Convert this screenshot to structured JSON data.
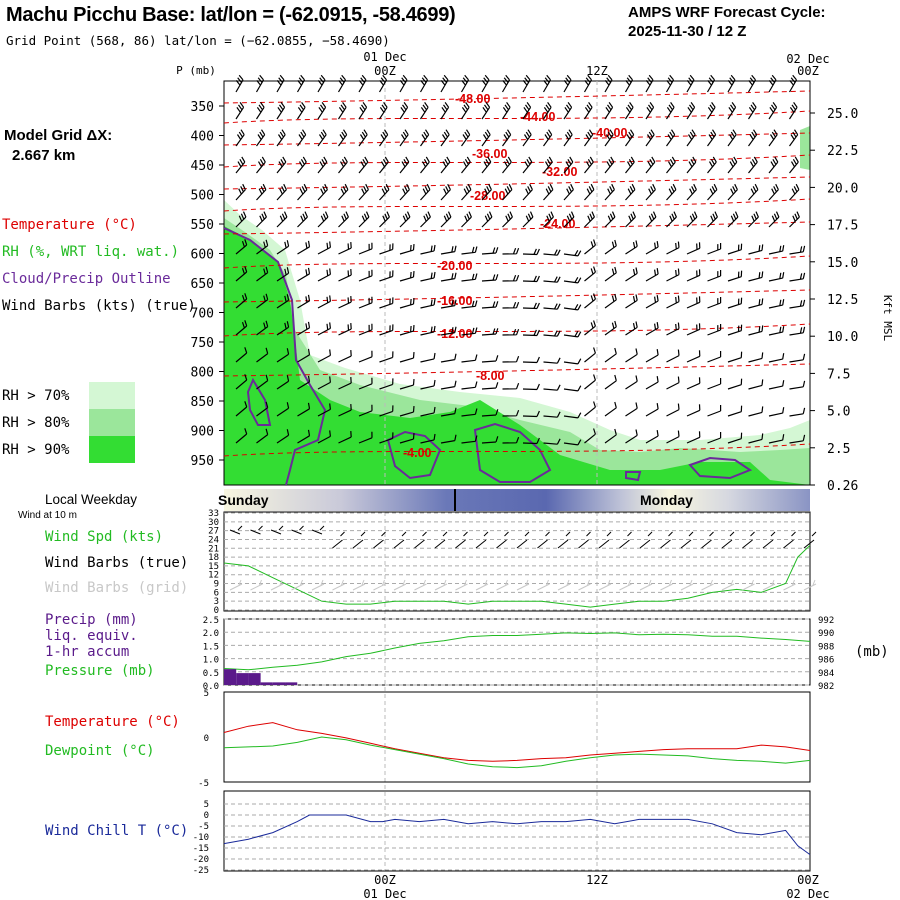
{
  "header": {
    "title": "Machu Picchu Base:  lat/lon = (-62.0915, -58.4699)",
    "subtitle": "Grid Point (568, 86) lat/lon = (−62.0855, −58.4690)",
    "cycle_line1": "AMPS WRF Forecast Cycle:",
    "cycle_line2": "2025-11-30 / 12  Z"
  },
  "model_grid": {
    "label": "Model Grid ΔX:",
    "value": "2.667 km"
  },
  "time_axis": {
    "top_dates": [
      "01 Dec",
      "02 Dec"
    ],
    "top_times": [
      "00Z",
      "12Z",
      "00Z"
    ],
    "bottom_times": [
      "00Z",
      "12Z",
      "00Z"
    ],
    "bottom_dates": [
      "01 Dec",
      "02 Dec"
    ]
  },
  "legend": {
    "temperature": "Temperature (°C)",
    "rh": "RH (%, WRT liq. wat.)",
    "cloud": "Cloud/Precip Outline",
    "wind": "Wind Barbs (kts) (true)",
    "rh70": "RH > 70%",
    "rh80": "RH > 80%",
    "rh90": "RH > 90%",
    "rh70_color": "#d4f7d4",
    "rh80_color": "#9be69b",
    "rh90_color": "#33dd33"
  },
  "weekday": {
    "label": "Local Weekday",
    "wind10": "Wind at 10 m",
    "day1": "Sunday",
    "day2": "Monday"
  },
  "panel_labels": {
    "wind_spd": "Wind Spd (kts)",
    "barbs_true": "Wind Barbs (true)",
    "barbs_grid": "Wind Barbs (grid)",
    "precip1": "Precip (mm)",
    "precip2": "liq. equiv.",
    "precip3": "1-hr accum",
    "pressure": "Pressure (mb)",
    "pressure_unit": "(mb)",
    "temperature": "Temperature (°C)",
    "dewpoint": "Dewpoint (°C)",
    "windchill": "Wind Chill T (°C)"
  },
  "colors": {
    "temp": "#dd0000",
    "dew": "#22bb22",
    "cloud": "#6a2a9a",
    "windchill": "#1a2a9a",
    "precip": "#5a1a8a",
    "pressure": "#22bb22"
  },
  "chart_data": [
    {
      "type": "contour",
      "name": "cross-section",
      "ylabel_left": "P (mb)",
      "ylabel_right": "Kft MSL",
      "pressure_ticks": [
        350,
        400,
        450,
        500,
        550,
        600,
        650,
        700,
        750,
        800,
        850,
        900,
        950
      ],
      "height_ticks": [
        "25.0",
        "22.5",
        "20.0",
        "17.5",
        "15.0",
        "12.5",
        "10.0",
        "7.5",
        "5.0",
        "2.5",
        "0.26"
      ],
      "temperature_contour_labels": [
        "-48.00",
        "-44.00",
        "-40.00",
        "-36.00",
        "-32.00",
        "-28.00",
        "-24.00",
        "-20.00",
        "-16.00",
        "-12.00",
        "-8.00",
        "-4.00"
      ]
    },
    {
      "type": "line",
      "name": "wind speed",
      "y_ticks": [
        0,
        3,
        6,
        9,
        12,
        15,
        18,
        21,
        24,
        27,
        30,
        33
      ],
      "ylim": [
        0,
        33
      ],
      "hours": [
        0,
        2,
        4,
        6,
        8,
        10,
        12,
        14,
        16,
        18,
        20,
        22,
        24,
        26,
        28,
        30,
        32,
        34,
        36,
        38,
        40,
        42,
        44,
        46,
        47,
        48
      ],
      "values": [
        16,
        15,
        11,
        7,
        3,
        2,
        2,
        3,
        3,
        3,
        2,
        3,
        3,
        3,
        2,
        1,
        2,
        3,
        3,
        4,
        6,
        7,
        6,
        9,
        18,
        22
      ]
    },
    {
      "type": "line",
      "name": "pressure",
      "y_ticks_left": [
        "0.0",
        "0.5",
        "1.0",
        "1.5",
        "2.0",
        "2.5"
      ],
      "y_ticks_right": [
        982,
        984,
        986,
        988,
        990,
        992
      ],
      "ylim_right": [
        982,
        992
      ],
      "hours": [
        0,
        2,
        4,
        6,
        8,
        10,
        12,
        14,
        16,
        18,
        20,
        22,
        24,
        26,
        28,
        30,
        32,
        34,
        36,
        38,
        40,
        42,
        44,
        46,
        48
      ],
      "values": [
        984.5,
        984.3,
        984.7,
        985.0,
        985.5,
        986.3,
        986.8,
        987.6,
        988.3,
        988.7,
        989.3,
        989.5,
        989.5,
        989.7,
        989.9,
        989.8,
        989.9,
        989.6,
        989.7,
        989.6,
        989.4,
        989.4,
        989.1,
        988.9,
        988.6
      ]
    },
    {
      "type": "bar",
      "name": "precip",
      "ylim": [
        0,
        2.5
      ],
      "hours": [
        0,
        1,
        2,
        3,
        4,
        5
      ],
      "values": [
        0.6,
        0.45,
        0.45,
        0.1,
        0.1,
        0.1
      ]
    },
    {
      "type": "line",
      "name": "temperature / dewpoint",
      "y_ticks": [
        5,
        0,
        -5
      ],
      "ylim": [
        -5,
        5
      ],
      "series": [
        {
          "name": "Temperature",
          "hours": [
            0,
            2,
            4,
            6,
            8,
            10,
            12,
            14,
            16,
            18,
            20,
            22,
            24,
            26,
            28,
            30,
            32,
            34,
            36,
            38,
            40,
            42,
            44,
            46,
            48
          ],
          "values": [
            0.5,
            1.2,
            1.6,
            0.8,
            0.4,
            -0.1,
            -0.7,
            -1.3,
            -1.8,
            -2.3,
            -2.6,
            -2.7,
            -2.6,
            -2.4,
            -2.3,
            -2.0,
            -1.8,
            -1.6,
            -1.4,
            -1.3,
            -1.3,
            -1.3,
            -0.9,
            -1.1,
            -1.5
          ]
        },
        {
          "name": "Dewpoint",
          "hours": [
            0,
            2,
            4,
            6,
            8,
            10,
            12,
            14,
            16,
            18,
            20,
            22,
            24,
            26,
            28,
            30,
            32,
            34,
            36,
            38,
            40,
            42,
            44,
            46,
            48
          ],
          "values": [
            -1.2,
            -1.1,
            -1.0,
            -0.6,
            0.0,
            -0.3,
            -0.9,
            -1.4,
            -1.9,
            -2.4,
            -3.0,
            -3.3,
            -3.4,
            -3.2,
            -2.7,
            -2.3,
            -2.0,
            -1.9,
            -2.0,
            -2.1,
            -2.4,
            -2.6,
            -2.7,
            -2.9,
            -2.6
          ]
        }
      ]
    },
    {
      "type": "line",
      "name": "wind chill",
      "y_ticks": [
        5,
        0,
        -5,
        -10,
        -15,
        -20,
        -25
      ],
      "ylim": [
        -25,
        5
      ],
      "hours": [
        0,
        2,
        4,
        6,
        7,
        8,
        10,
        12,
        13,
        14,
        16,
        18,
        20,
        22,
        24,
        26,
        28,
        30,
        32,
        34,
        36,
        38,
        40,
        42,
        44,
        46,
        47,
        48
      ],
      "values": [
        -13,
        -11,
        -8,
        -3,
        0,
        0,
        0,
        -3,
        -3,
        -2,
        -3,
        -2,
        -4,
        -3,
        -4,
        -3,
        -3,
        -2,
        -4,
        -2,
        -2,
        -2,
        -4,
        -8,
        -9,
        -7,
        -14,
        -18
      ]
    }
  ]
}
